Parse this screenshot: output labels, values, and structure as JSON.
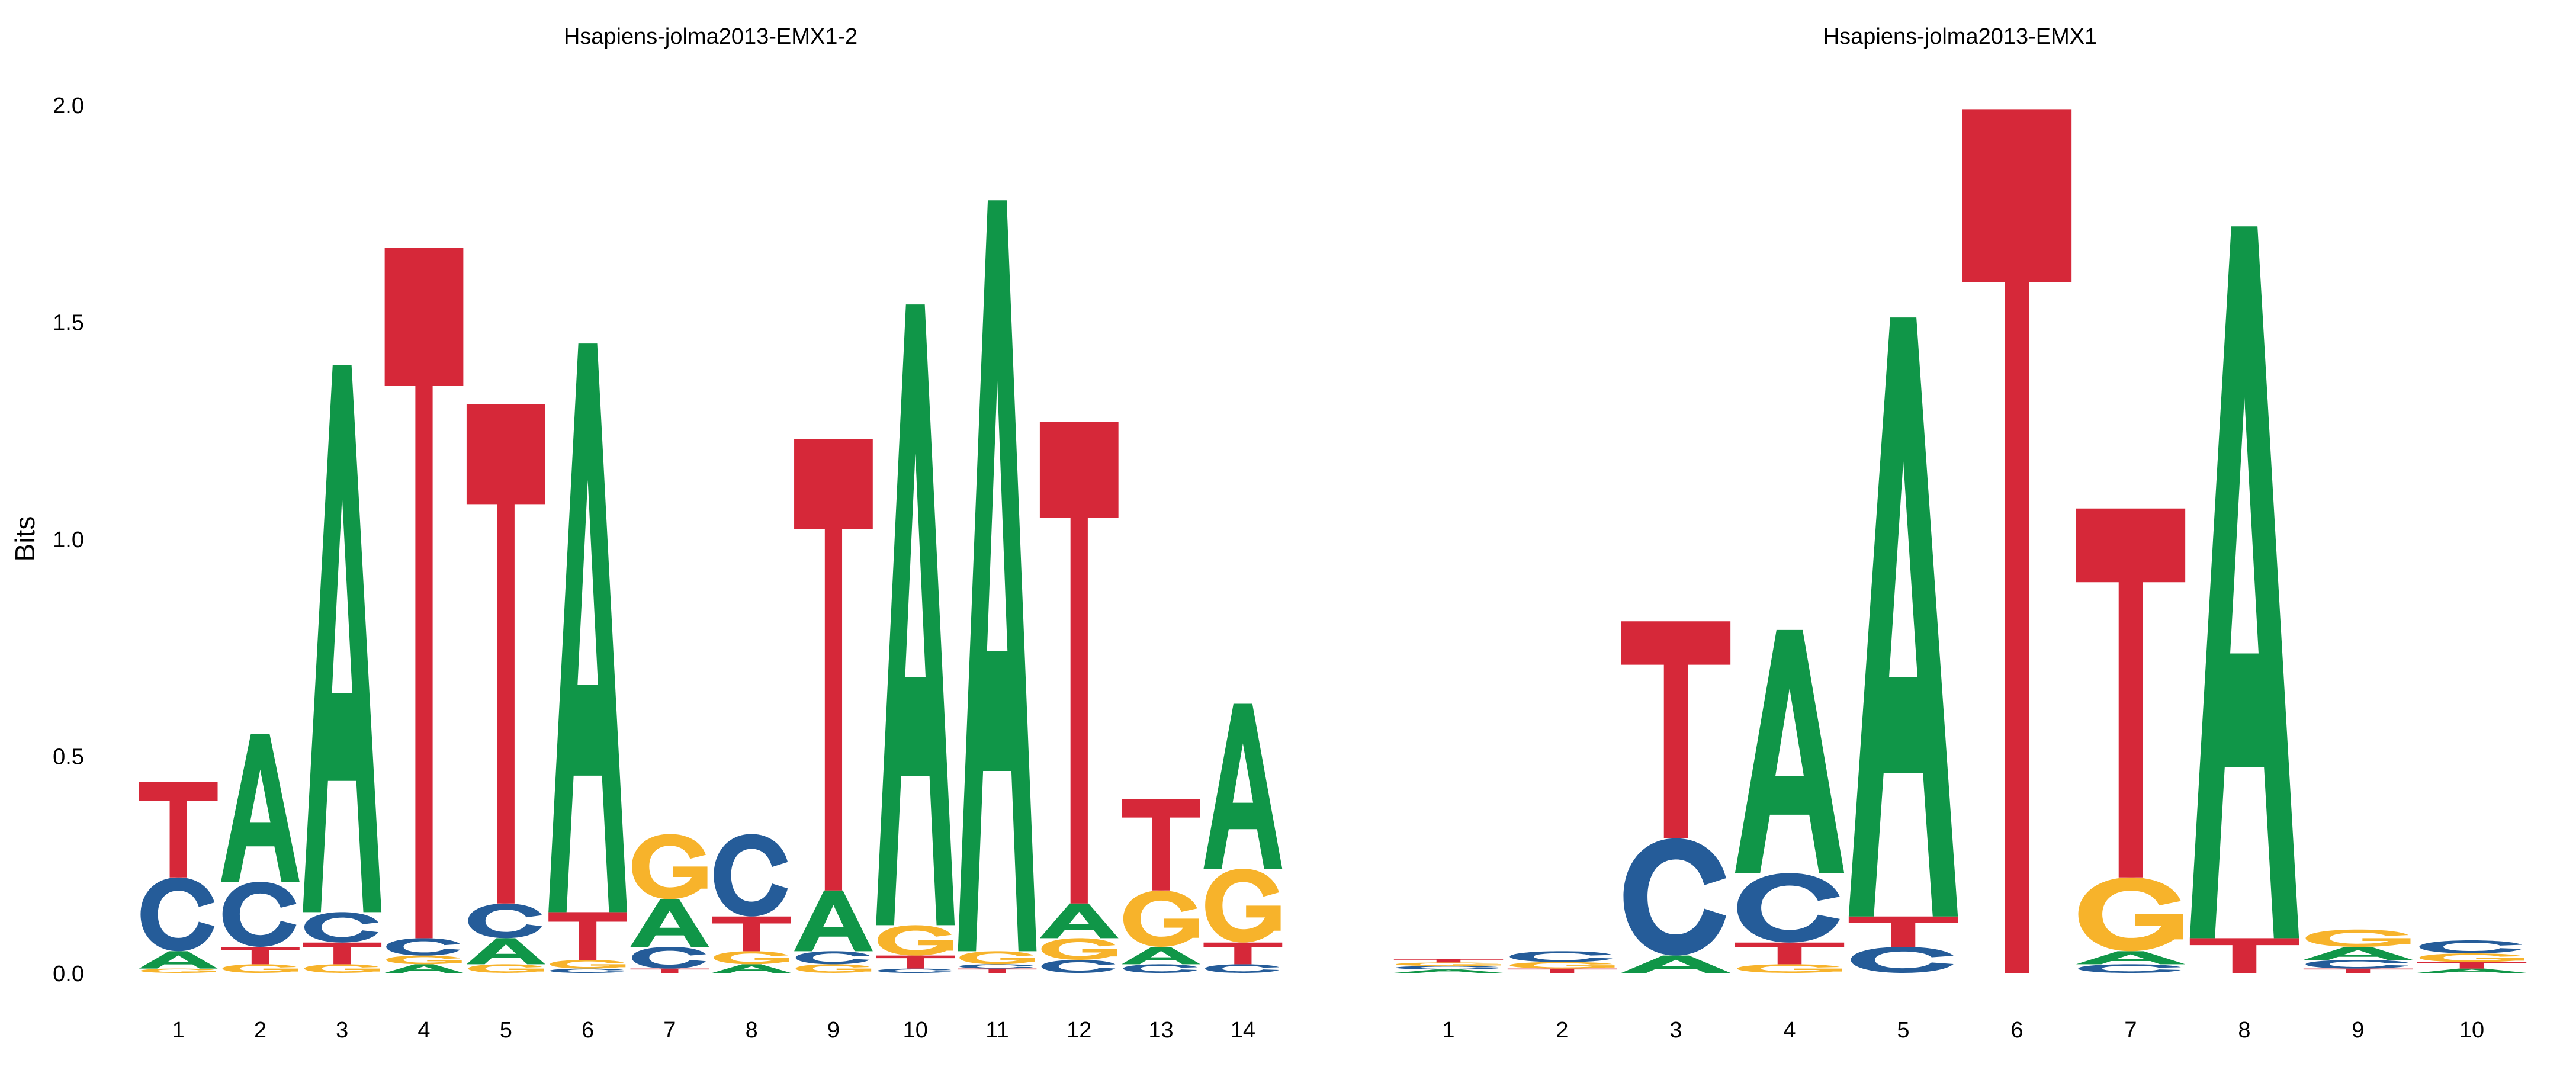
{
  "colors": {
    "A": "#109648",
    "C": "#255C99",
    "G": "#F7B32B",
    "T": "#D62839"
  },
  "chart_data": [
    {
      "type": "sequence-logo",
      "title": "Hsapiens-jolma2013-EMX1-2",
      "ylabel": "Bits",
      "ylim": [
        0,
        2
      ],
      "yticks": [
        "0.0",
        "0.5",
        "1.0",
        "1.5",
        "2.0"
      ],
      "positions": [
        {
          "label": "1",
          "stack": [
            [
              "G",
              0.01
            ],
            [
              "A",
              0.04
            ],
            [
              "C",
              0.17
            ],
            [
              "T",
              0.22
            ]
          ]
        },
        {
          "label": "2",
          "stack": [
            [
              "G",
              0.02
            ],
            [
              "T",
              0.04
            ],
            [
              "C",
              0.15
            ],
            [
              "A",
              0.34
            ]
          ]
        },
        {
          "label": "3",
          "stack": [
            [
              "G",
              0.02
            ],
            [
              "T",
              0.05
            ],
            [
              "C",
              0.07
            ],
            [
              "A",
              1.26
            ]
          ]
        },
        {
          "label": "4",
          "stack": [
            [
              "A",
              0.02
            ],
            [
              "G",
              0.02
            ],
            [
              "C",
              0.04
            ],
            [
              "T",
              1.59
            ]
          ]
        },
        {
          "label": "5",
          "stack": [
            [
              "G",
              0.02
            ],
            [
              "A",
              0.06
            ],
            [
              "C",
              0.08
            ],
            [
              "T",
              1.15
            ]
          ]
        },
        {
          "label": "6",
          "stack": [
            [
              "C",
              0.01
            ],
            [
              "G",
              0.02
            ],
            [
              "T",
              0.11
            ],
            [
              "A",
              1.31
            ]
          ]
        },
        {
          "label": "7",
          "stack": [
            [
              "T",
              0.01
            ],
            [
              "C",
              0.05
            ],
            [
              "A",
              0.11
            ],
            [
              "G",
              0.15
            ]
          ]
        },
        {
          "label": "8",
          "stack": [
            [
              "A",
              0.02
            ],
            [
              "G",
              0.03
            ],
            [
              "T",
              0.08
            ],
            [
              "C",
              0.19
            ]
          ]
        },
        {
          "label": "9",
          "stack": [
            [
              "G",
              0.02
            ],
            [
              "C",
              0.03
            ],
            [
              "A",
              0.14
            ],
            [
              "T",
              1.04
            ]
          ]
        },
        {
          "label": "10",
          "stack": [
            [
              "C",
              0.01
            ],
            [
              "T",
              0.03
            ],
            [
              "G",
              0.07
            ],
            [
              "A",
              1.43
            ]
          ]
        },
        {
          "label": "11",
          "stack": [
            [
              "T",
              0.01
            ],
            [
              "C",
              0.01
            ],
            [
              "G",
              0.03
            ],
            [
              "A",
              1.73
            ]
          ]
        },
        {
          "label": "12",
          "stack": [
            [
              "C",
              0.03
            ],
            [
              "G",
              0.05
            ],
            [
              "A",
              0.08
            ],
            [
              "T",
              1.11
            ]
          ]
        },
        {
          "label": "13",
          "stack": [
            [
              "C",
              0.02
            ],
            [
              "A",
              0.04
            ],
            [
              "G",
              0.13
            ],
            [
              "T",
              0.21
            ]
          ]
        },
        {
          "label": "14",
          "stack": [
            [
              "C",
              0.02
            ],
            [
              "T",
              0.05
            ],
            [
              "G",
              0.17
            ],
            [
              "A",
              0.38
            ]
          ]
        }
      ]
    },
    {
      "type": "sequence-logo",
      "title": "Hsapiens-jolma2013-EMX1",
      "ylabel": "",
      "ylim": [
        0,
        2
      ],
      "positions": [
        {
          "label": "1",
          "stack": [
            [
              "A",
              0.008
            ],
            [
              "C",
              0.008
            ],
            [
              "G",
              0.008
            ],
            [
              "T",
              0.008
            ]
          ]
        },
        {
          "label": "2",
          "stack": [
            [
              "T",
              0.01
            ],
            [
              "G",
              0.015
            ],
            [
              "C",
              0.025
            ]
          ]
        },
        {
          "label": "3",
          "stack": [
            [
              "A",
              0.04
            ],
            [
              "C",
              0.27
            ],
            [
              "T",
              0.5
            ]
          ]
        },
        {
          "label": "4",
          "stack": [
            [
              "G",
              0.02
            ],
            [
              "T",
              0.05
            ],
            [
              "C",
              0.16
            ],
            [
              "A",
              0.56
            ]
          ]
        },
        {
          "label": "5",
          "stack": [
            [
              "C",
              0.06
            ],
            [
              "T",
              0.07
            ],
            [
              "A",
              1.38
            ]
          ]
        },
        {
          "label": "6",
          "stack": [
            [
              "T",
              1.99
            ]
          ]
        },
        {
          "label": "7",
          "stack": [
            [
              "C",
              0.02
            ],
            [
              "A",
              0.03
            ],
            [
              "G",
              0.17
            ],
            [
              "T",
              0.85
            ]
          ]
        },
        {
          "label": "8",
          "stack": [
            [
              "T",
              0.08
            ],
            [
              "A",
              1.64
            ]
          ]
        },
        {
          "label": "9",
          "stack": [
            [
              "T",
              0.01
            ],
            [
              "C",
              0.02
            ],
            [
              "A",
              0.03
            ],
            [
              "G",
              0.04
            ]
          ]
        },
        {
          "label": "10",
          "stack": [
            [
              "A",
              0.01
            ],
            [
              "T",
              0.015
            ],
            [
              "G",
              0.02
            ],
            [
              "C",
              0.03
            ]
          ]
        }
      ]
    }
  ]
}
